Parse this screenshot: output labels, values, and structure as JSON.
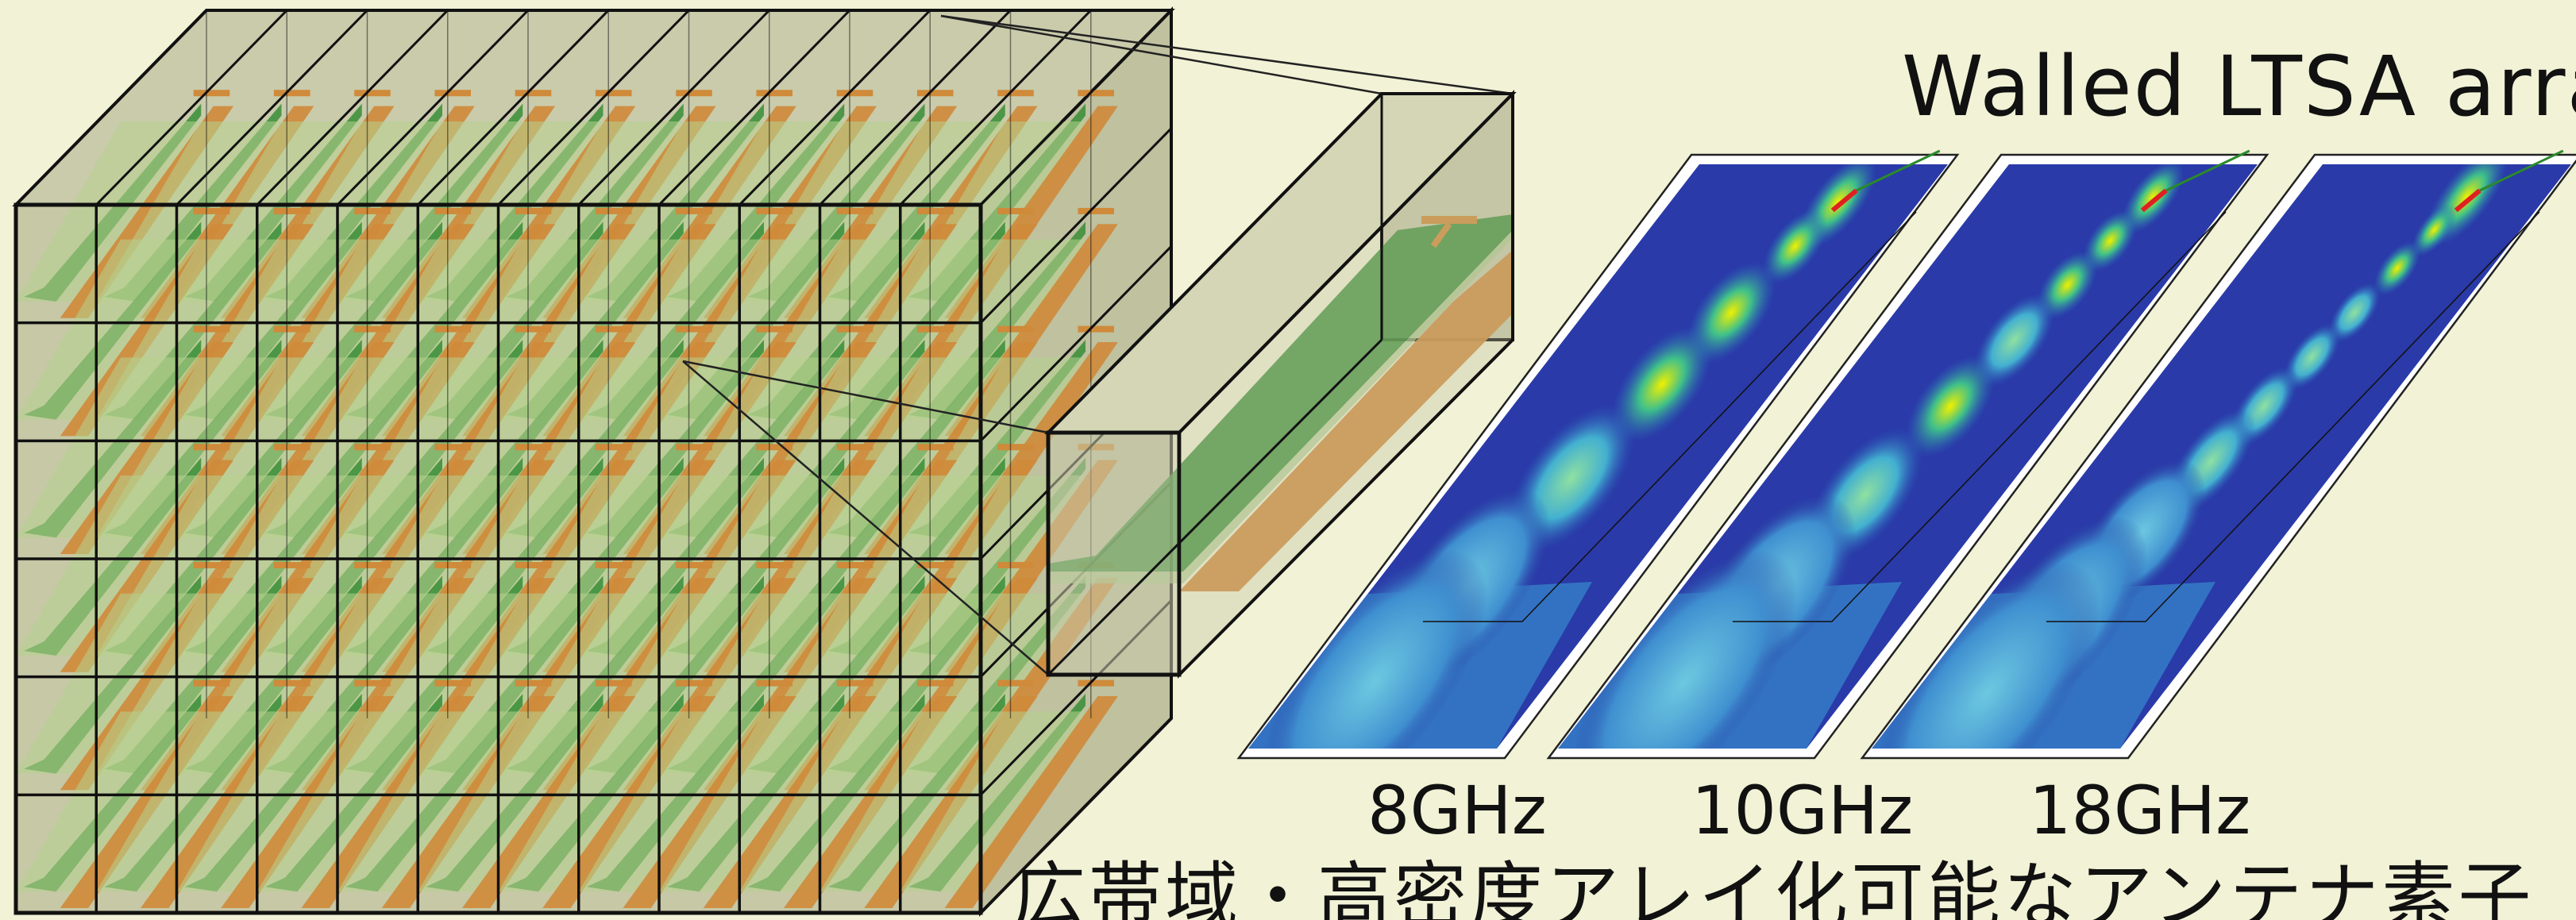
{
  "title": "Walled LTSA array",
  "frequencies": [
    "8GHz",
    "10GHz",
    "18GHz"
  ],
  "caption": "広帯域・高密度アレイ化可能なアンテナ素子",
  "colors": {
    "background": "#f1f2d6",
    "frame": "#111111",
    "cell_fill": "#c6c8a6",
    "substrate": "#2f8a2f",
    "conductor": "#cf8a3a",
    "field_high": "#e8f000",
    "field_low": "#2a3aa8"
  },
  "array": {
    "columns": 12,
    "rows": 6
  }
}
